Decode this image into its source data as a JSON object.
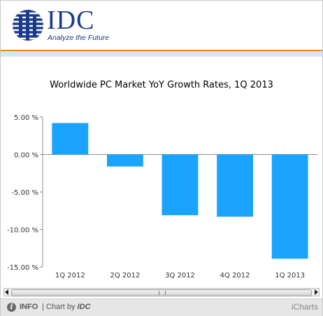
{
  "header": {
    "logo_text": "IDC",
    "tagline": "Analyze the Future",
    "brand_color": "#1a3a8c",
    "accent_color": "#e58a2e"
  },
  "chart_data": {
    "type": "bar",
    "title": "Worldwide PC Market YoY Growth  Rates, 1Q 2013",
    "categories": [
      "1Q 2012",
      "2Q 2012",
      "3Q 2012",
      "4Q 2012",
      "1Q 2013"
    ],
    "values": [
      4.2,
      -1.6,
      -8.1,
      -8.3,
      -13.9
    ],
    "ylim": [
      -15,
      5
    ],
    "yticks": [
      5,
      0,
      -5,
      -10,
      -15
    ],
    "ytick_labels": [
      "5.00 %",
      "0.00 %",
      "-5.00 %",
      "-10.00 %",
      "-15.00 %"
    ],
    "bar_color": "#1aa3ff",
    "grid": false,
    "xlabel": "",
    "ylabel": ""
  },
  "footer": {
    "info_icon": "info-icon",
    "info_label": "INFO",
    "chart_by_prefix": "| Chart by ",
    "chart_by_brand": "IDC",
    "provider": "iCharts"
  }
}
